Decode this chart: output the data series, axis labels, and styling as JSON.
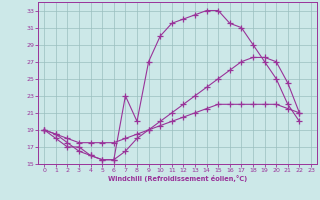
{
  "xlabel": "Windchill (Refroidissement éolien,°C)",
  "bg_color": "#cce8e8",
  "line_color": "#993399",
  "xlim": [
    -0.5,
    23.5
  ],
  "ylim": [
    15,
    34
  ],
  "xticks": [
    0,
    1,
    2,
    3,
    4,
    5,
    6,
    7,
    8,
    9,
    10,
    11,
    12,
    13,
    14,
    15,
    16,
    17,
    18,
    19,
    20,
    21,
    22,
    23
  ],
  "yticks": [
    15,
    17,
    19,
    21,
    23,
    25,
    27,
    29,
    31,
    33
  ],
  "grid_color": "#9bbfbf",
  "curve1_x": [
    0,
    1,
    2,
    3,
    4,
    5,
    6,
    7,
    8,
    9,
    10,
    11,
    12,
    13,
    14,
    15,
    16,
    17,
    18,
    19,
    20,
    21,
    22
  ],
  "curve1_y": [
    19,
    18,
    17,
    17,
    16,
    15.5,
    15.5,
    23,
    20,
    27,
    30,
    31.5,
    32,
    32.5,
    33,
    33,
    31.5,
    31,
    29,
    27,
    25,
    22,
    20
  ],
  "curve2_x": [
    0,
    1,
    2,
    3,
    4,
    5,
    6,
    7,
    8,
    9,
    10,
    11,
    12,
    13,
    14,
    15,
    16,
    17,
    18,
    19,
    20,
    21,
    22
  ],
  "curve2_y": [
    19,
    18.5,
    17.5,
    16.5,
    16,
    15.5,
    15.5,
    16.5,
    18,
    19,
    20,
    21,
    22,
    23,
    24,
    25,
    26,
    27,
    27.5,
    27.5,
    27,
    24.5,
    21
  ],
  "curve3_x": [
    0,
    1,
    2,
    3,
    4,
    5,
    6,
    7,
    8,
    9,
    10,
    11,
    12,
    13,
    14,
    15,
    16,
    17,
    18,
    19,
    20,
    21,
    22
  ],
  "curve3_y": [
    19,
    18.5,
    18,
    17.5,
    17.5,
    17.5,
    17.5,
    18,
    18.5,
    19,
    19.5,
    20,
    20.5,
    21,
    21.5,
    22,
    22,
    22,
    22,
    22,
    22,
    21.5,
    21
  ]
}
